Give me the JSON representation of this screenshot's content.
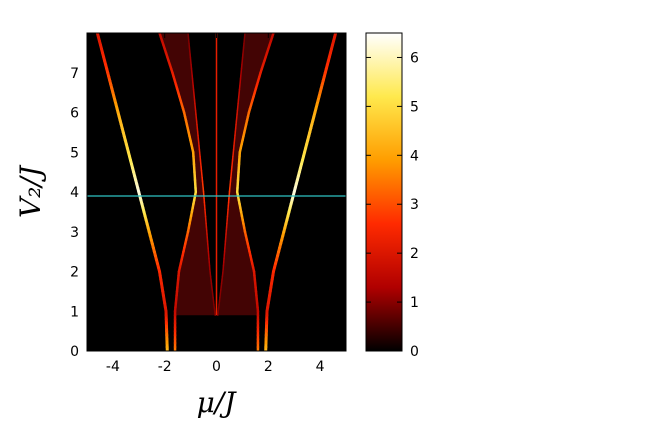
{
  "chart_data": {
    "type": "heatmap",
    "title": "",
    "xlabel": "μ/J",
    "ylabel": "V₂/J",
    "xlim": [
      -5,
      5
    ],
    "ylim": [
      0,
      8
    ],
    "x_ticks": [
      -4,
      -2,
      0,
      2,
      4
    ],
    "x_tick_labels": [
      "-4",
      "-2",
      "0",
      "2",
      "4"
    ],
    "y_ticks": [
      0,
      1,
      2,
      3,
      4,
      5,
      6,
      7
    ],
    "y_tick_labels": [
      "0",
      "1",
      "2",
      "3",
      "4",
      "5",
      "6",
      "7"
    ],
    "colorbar": {
      "range": [
        0,
        6.5
      ],
      "ticks": [
        0,
        1,
        2,
        3,
        4,
        5,
        6
      ],
      "tick_labels": [
        "0",
        "1",
        "2",
        "3",
        "4",
        "5",
        "6"
      ],
      "colormap": "hot",
      "colors": [
        "#000000",
        "#b00000",
        "#ff2a00",
        "#ff9d00",
        "#ffe94d",
        "#ffffff"
      ]
    },
    "annotations": [
      {
        "type": "horizontal-line",
        "y": 3.9,
        "color": "#2fc4c4"
      }
    ],
    "bands": {
      "outer": [
        {
          "v": 0,
          "mu": 1.9
        },
        {
          "v": 1,
          "mu": 1.95
        },
        {
          "v": 2,
          "mu": 2.2
        },
        {
          "v": 3,
          "mu": 2.6
        },
        {
          "v": 4,
          "mu": 3.0
        },
        {
          "v": 5,
          "mu": 3.4
        },
        {
          "v": 6,
          "mu": 3.8
        },
        {
          "v": 7,
          "mu": 4.2
        },
        {
          "v": 8,
          "mu": 4.6
        }
      ],
      "inner": [
        {
          "v": 0,
          "mu": 1.6
        },
        {
          "v": 1,
          "mu": 1.6
        },
        {
          "v": 2,
          "mu": 1.45
        },
        {
          "v": 3,
          "mu": 1.1
        },
        {
          "v": 4,
          "mu": 0.8
        },
        {
          "v": 5,
          "mu": 0.9
        },
        {
          "v": 6,
          "mu": 1.25
        },
        {
          "v": 7,
          "mu": 1.7
        },
        {
          "v": 8,
          "mu": 2.2
        }
      ],
      "center": [
        {
          "v": 0.9,
          "mu": 0.05
        },
        {
          "v": 2,
          "mu": 0.25
        },
        {
          "v": 4,
          "mu": 0.5
        },
        {
          "v": 6,
          "mu": 0.8
        },
        {
          "v": 8,
          "mu": 1.1
        }
      ],
      "intensity": [
        {
          "v": 0,
          "value": 4.5
        },
        {
          "v": 1,
          "value": 2.0
        },
        {
          "v": 2,
          "value": 2.5
        },
        {
          "v": 3,
          "value": 4.0
        },
        {
          "v": 4,
          "value": 6.3
        },
        {
          "v": 5,
          "value": 5.0
        },
        {
          "v": 6,
          "value": 4.2
        },
        {
          "v": 7,
          "value": 2.8
        },
        {
          "v": 8,
          "value": 2.0
        }
      ]
    }
  }
}
